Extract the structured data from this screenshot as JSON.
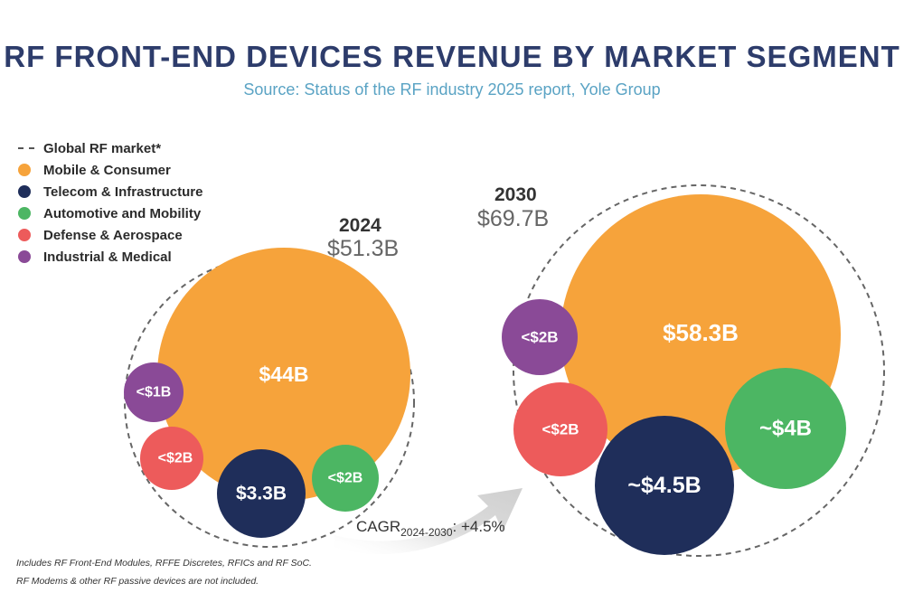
{
  "header": {
    "title": "RF FRONT-END DEVICES REVENUE BY MARKET SEGMENT",
    "subtitle": "Source: Status of the RF industry 2025 report, Yole Group"
  },
  "legend": {
    "items": [
      {
        "label": "Global RF market*",
        "style": "dashed",
        "color": "#555555"
      },
      {
        "label": "Mobile & Consumer",
        "color": "#f6a33b"
      },
      {
        "label": "Telecom & Infrastructure",
        "color": "#1f2e5a"
      },
      {
        "label": "Automotive and Mobility",
        "color": "#4cb663"
      },
      {
        "label": "Defense & Aerospace",
        "color": "#ed5b5b"
      },
      {
        "label": "Industrial & Medical",
        "color": "#8a4a97"
      }
    ]
  },
  "chart_data": {
    "type": "bubble",
    "title": "RF FRONT-END DEVICES REVENUE BY MARKET SEGMENT",
    "groups": [
      {
        "year": "2024",
        "total_label": "$51.3B",
        "total_value": 51.3,
        "segments": [
          {
            "name": "Mobile & Consumer",
            "label": "$44B",
            "value": 44
          },
          {
            "name": "Telecom & Infrastructure",
            "label": "$3.3B",
            "value": 3.3
          },
          {
            "name": "Automotive and Mobility",
            "label": "<$2B",
            "value": 2
          },
          {
            "name": "Defense & Aerospace",
            "label": "<$2B",
            "value": 2
          },
          {
            "name": "Industrial & Medical",
            "label": "<$1B",
            "value": 1
          }
        ]
      },
      {
        "year": "2030",
        "total_label": "$69.7B",
        "total_value": 69.7,
        "segments": [
          {
            "name": "Mobile & Consumer",
            "label": "$58.3B",
            "value": 58.3
          },
          {
            "name": "Telecom & Infrastructure",
            "label": "~$4.5B",
            "value": 4.5
          },
          {
            "name": "Automotive and Mobility",
            "label": "~$4B",
            "value": 4
          },
          {
            "name": "Defense & Aerospace",
            "label": "<$2B",
            "value": 2
          },
          {
            "name": "Industrial & Medical",
            "label": "<$2B",
            "value": 2
          }
        ]
      }
    ],
    "cagr": {
      "prefix": "CAGR",
      "sub": "2024-2030",
      "suffix": ": +4.5%"
    }
  },
  "footnotes": [
    "Includes RF Front-End Modules, RFFE Discretes, RFICs and RF SoC.",
    "RF Modems & other RF passive devices are not included."
  ]
}
